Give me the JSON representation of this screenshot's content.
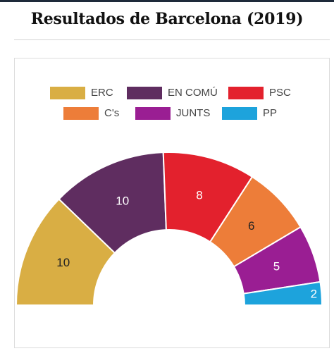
{
  "header": {
    "title": "Resultados de Barcelona (2019)"
  },
  "chart_data": {
    "type": "parliament",
    "title": "Resultados de Barcelona (2019)",
    "total_seats": 41,
    "parties": [
      {
        "name": "ERC",
        "seats": 10,
        "color": "#d9ae44"
      },
      {
        "name": "EN COMÚ",
        "seats": 10,
        "color": "#5f2d60"
      },
      {
        "name": "PSC",
        "seats": 8,
        "color": "#e3212d"
      },
      {
        "name": "C's",
        "seats": 6,
        "color": "#ed7d39"
      },
      {
        "name": "JUNTS",
        "seats": 5,
        "color": "#9a1e93"
      },
      {
        "name": "PP",
        "seats": 2,
        "color": "#1da3dc"
      }
    ],
    "legend_position": "top"
  }
}
